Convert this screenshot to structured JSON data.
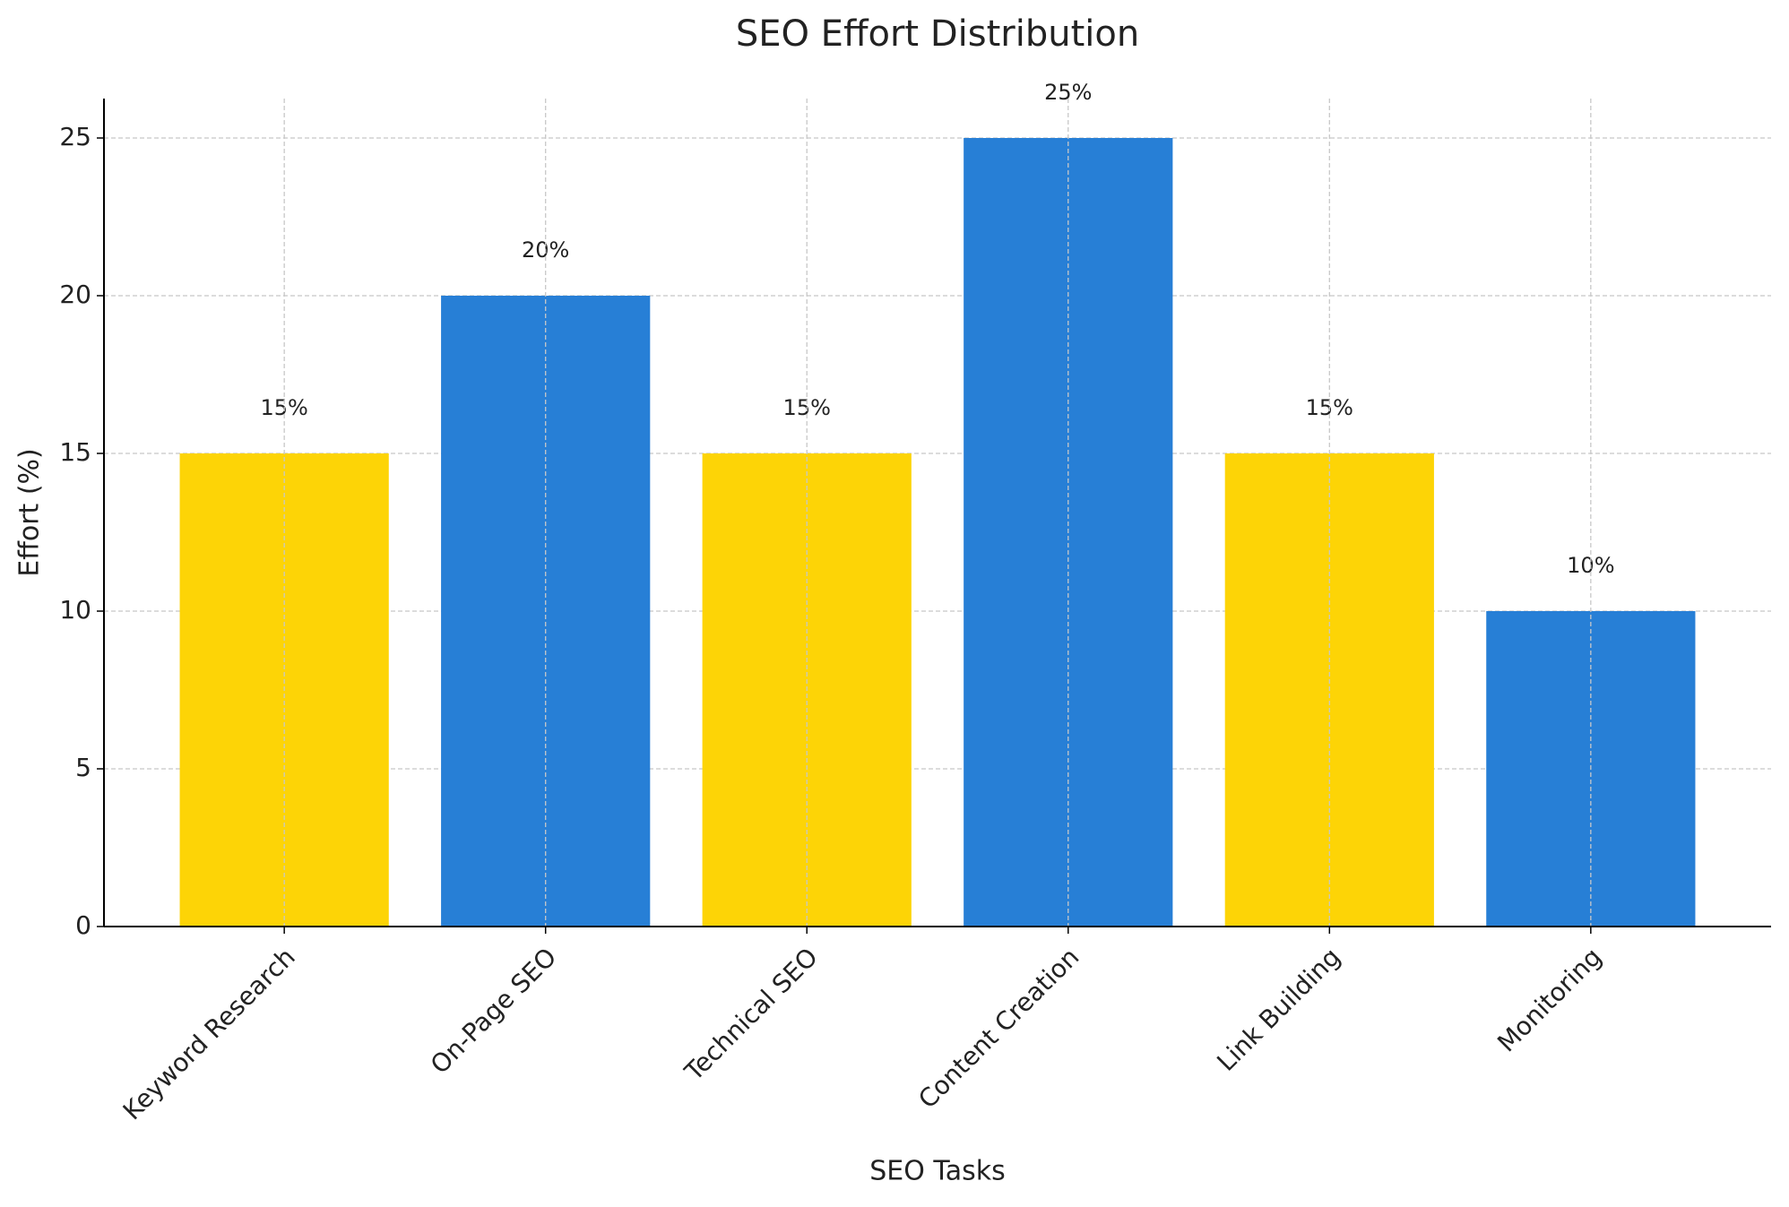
{
  "chart_data": {
    "type": "bar",
    "title": "SEO Effort Distribution",
    "x_label": "SEO Tasks",
    "y_label": "Effort (%)",
    "categories": [
      "Keyword Research",
      "On-Page SEO",
      "Technical SEO",
      "Content Creation",
      "Link Building",
      "Monitoring"
    ],
    "values": [
      15,
      20,
      15,
      25,
      15,
      10
    ],
    "value_labels": [
      "15%",
      "20%",
      "15%",
      "25%",
      "15%",
      "10%"
    ],
    "colors": [
      "#fdd406",
      "#277fd6",
      "#fdd406",
      "#277fd6",
      "#fdd406",
      "#277fd6"
    ],
    "ylim": [
      0,
      26.25
    ],
    "yticks": [
      0,
      5,
      10,
      15,
      20,
      25
    ],
    "grid": true
  }
}
